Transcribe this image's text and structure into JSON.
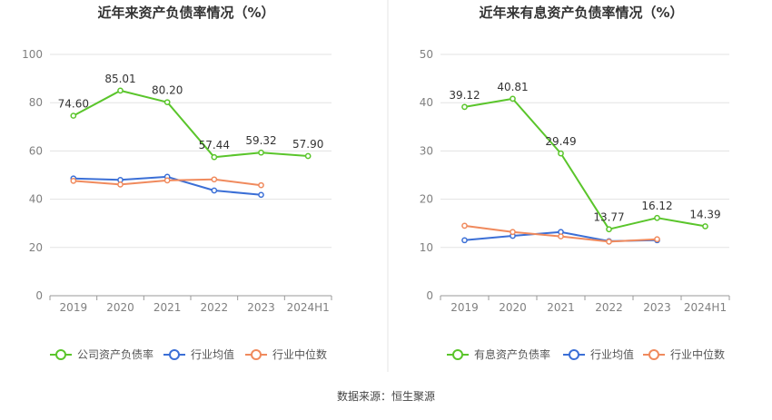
{
  "chart_data": [
    {
      "type": "line",
      "title": "近年来资产负债率情况（%）",
      "categories": [
        "2019",
        "2020",
        "2021",
        "2022",
        "2023",
        "2024H1"
      ],
      "ylim": [
        0,
        100
      ],
      "yticks": [
        0,
        20,
        40,
        60,
        80,
        100
      ],
      "grid": true,
      "legend_position": "bottom",
      "series": [
        {
          "name": "公司资产负债率",
          "color": "#5ac52b",
          "values": [
            74.6,
            85.01,
            80.2,
            57.44,
            59.32,
            57.9
          ],
          "labels": [
            "74.60",
            "85.01",
            "80.20",
            "57.44",
            "59.32",
            "57.90"
          ]
        },
        {
          "name": "行业均值",
          "color": "#3b6fd6",
          "values": [
            48.6,
            48.0,
            49.3,
            43.6,
            41.8,
            null
          ]
        },
        {
          "name": "行业中位数",
          "color": "#f08a5d",
          "values": [
            47.6,
            46.1,
            47.8,
            48.2,
            45.8,
            null
          ]
        }
      ]
    },
    {
      "type": "line",
      "title": "近年来有息资产负债率情况（%）",
      "categories": [
        "2019",
        "2020",
        "2021",
        "2022",
        "2023",
        "2024H1"
      ],
      "ylim": [
        0,
        50
      ],
      "yticks": [
        0,
        10,
        20,
        30,
        40,
        50
      ],
      "grid": true,
      "legend_position": "bottom",
      "series": [
        {
          "name": "有息资产负债率",
          "color": "#5ac52b",
          "values": [
            39.12,
            40.81,
            29.49,
            13.77,
            16.12,
            14.39
          ],
          "labels": [
            "39.12",
            "40.81",
            "29.49",
            "13.77",
            "16.12",
            "14.39"
          ]
        },
        {
          "name": "行业均值",
          "color": "#3b6fd6",
          "values": [
            11.5,
            12.4,
            13.2,
            11.3,
            11.5,
            null
          ]
        },
        {
          "name": "行业中位数",
          "color": "#f08a5d",
          "values": [
            14.5,
            13.2,
            12.3,
            11.2,
            11.7,
            null
          ]
        }
      ]
    }
  ],
  "footer": {
    "source": "数据来源：恒生聚源"
  }
}
